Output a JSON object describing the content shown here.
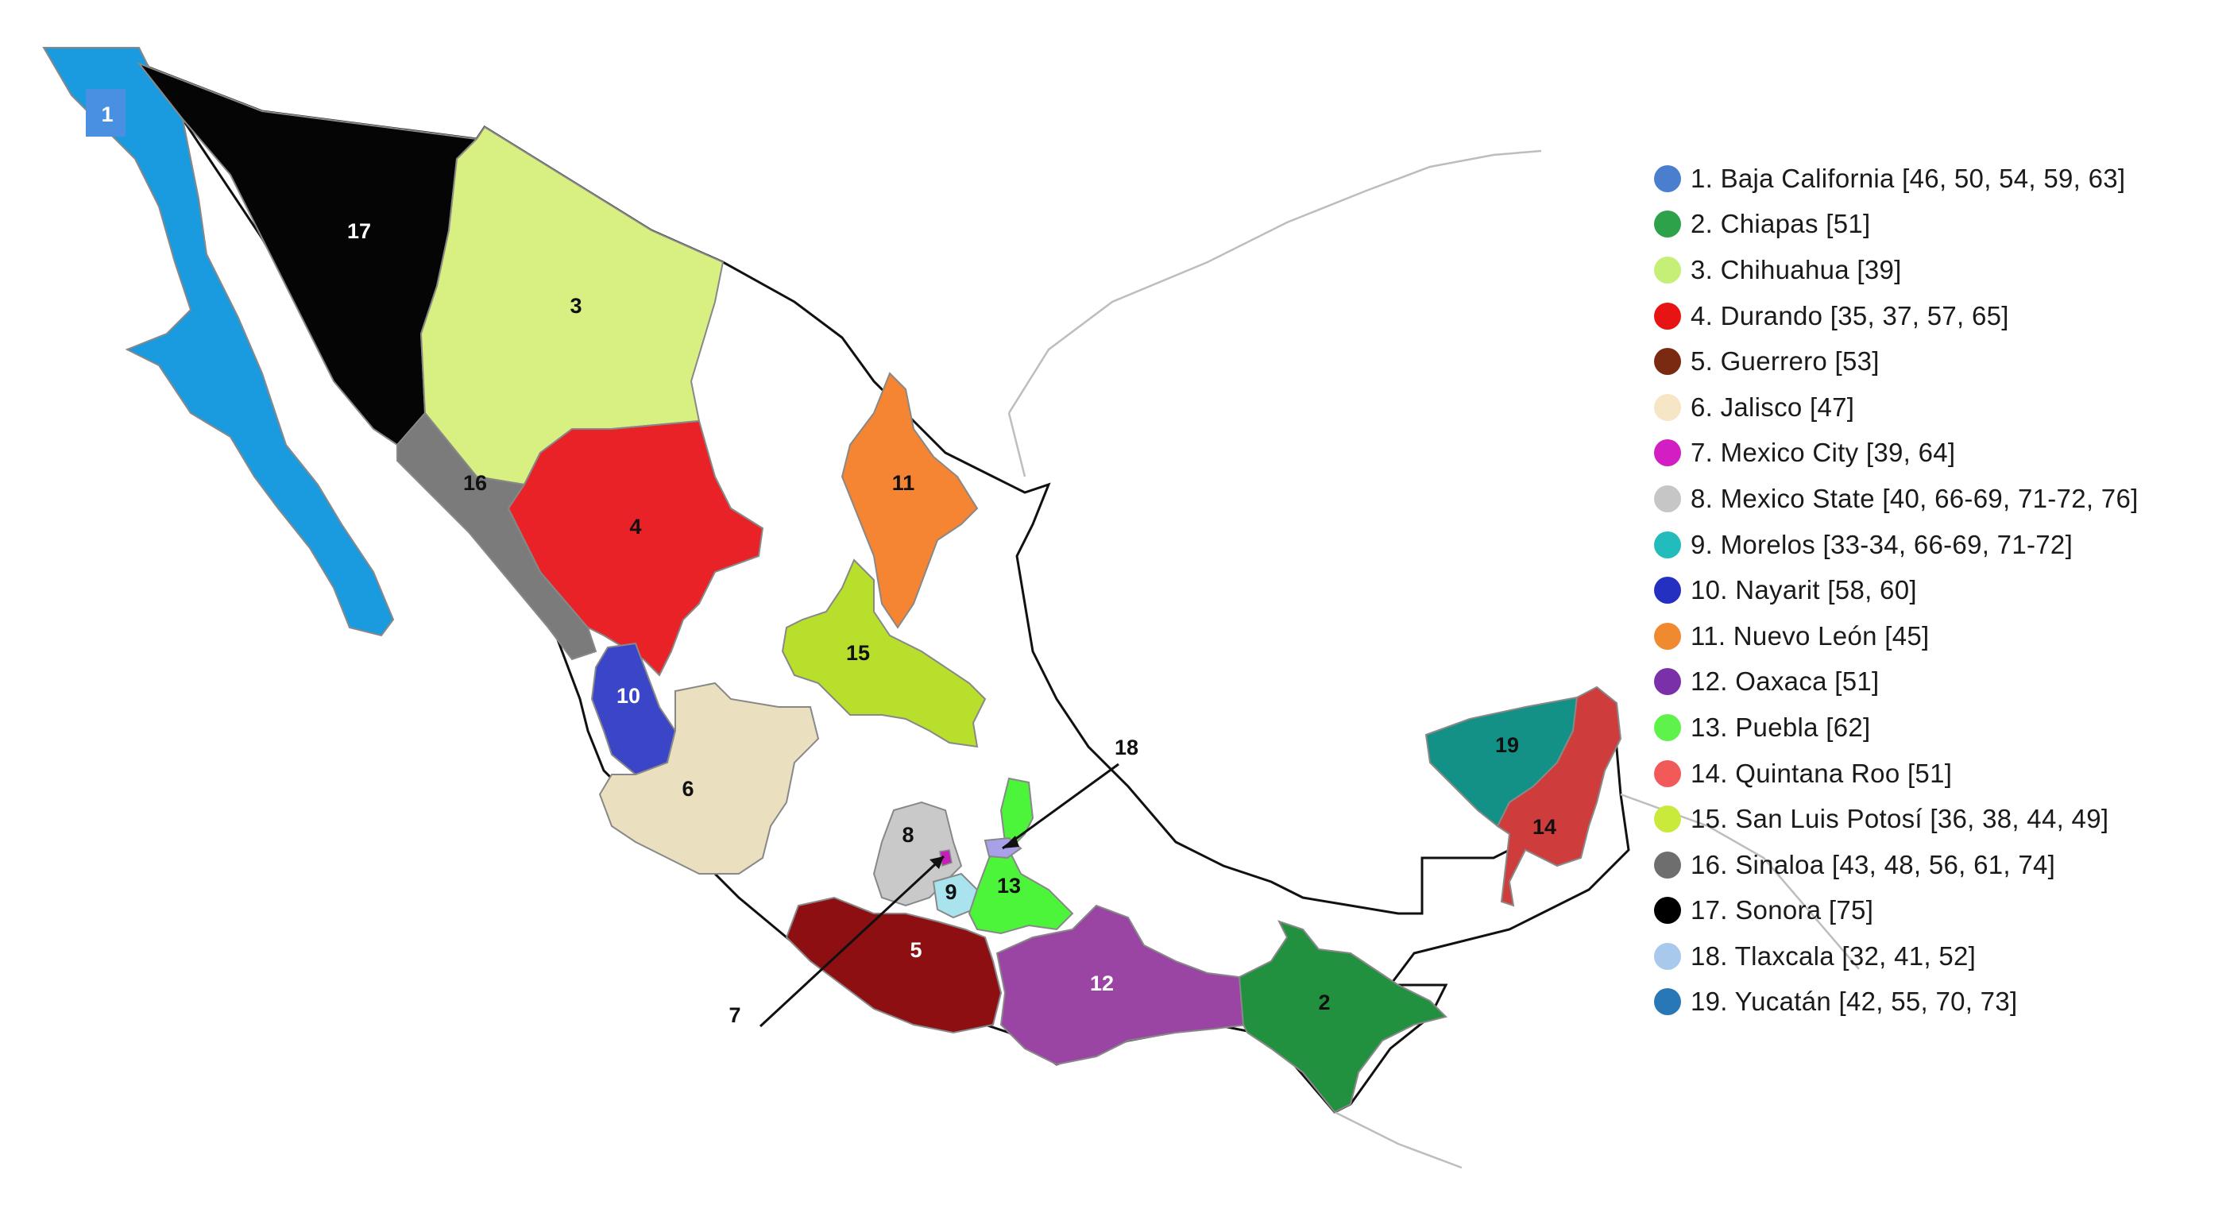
{
  "map": {
    "regions": [
      {
        "id": 1,
        "label": "1",
        "color": "#1a9be0"
      },
      {
        "id": 2,
        "label": "2",
        "color": "#21913f"
      },
      {
        "id": 3,
        "label": "3",
        "color": "#d8ef82"
      },
      {
        "id": 4,
        "label": "4",
        "color": "#e82226"
      },
      {
        "id": 5,
        "label": "5",
        "color": "#8e0f12"
      },
      {
        "id": 6,
        "label": "6",
        "color": "#eadfbf"
      },
      {
        "id": 7,
        "label": "7",
        "color": "#c41fb8"
      },
      {
        "id": 8,
        "label": "8",
        "color": "#c9c9c9"
      },
      {
        "id": 9,
        "label": "9",
        "color": "#a9e4ee"
      },
      {
        "id": 10,
        "label": "10",
        "color": "#3b45c8"
      },
      {
        "id": 11,
        "label": "11",
        "color": "#f58433"
      },
      {
        "id": 12,
        "label": "12",
        "color": "#9a44a4"
      },
      {
        "id": 13,
        "label": "13",
        "color": "#4df53a"
      },
      {
        "id": 14,
        "label": "14",
        "color": "#cf3c3c"
      },
      {
        "id": 15,
        "label": "15",
        "color": "#b7df2c"
      },
      {
        "id": 16,
        "label": "16",
        "color": "#7b7b7b"
      },
      {
        "id": 17,
        "label": "17",
        "color": "#050505"
      },
      {
        "id": 18,
        "label": "18",
        "color": "#a8a0e8"
      },
      {
        "id": 19,
        "label": "19",
        "color": "#139187"
      }
    ]
  },
  "legend": [
    {
      "text": "1. Baja California [46, 50, 54, 59, 63]",
      "color": "#4a7fd0"
    },
    {
      "text": "2. Chiapas [51]",
      "color": "#2ea24a"
    },
    {
      "text": "3. Chihuahua  [39]",
      "color": "#c6ef78"
    },
    {
      "text": "4. Durando  [35, 37, 57, 65]",
      "color": "#e81414"
    },
    {
      "text": "5. Guerrero [53]",
      "color": "#7a2a10"
    },
    {
      "text": "6. Jalisco [47]",
      "color": "#f6e6c6"
    },
    {
      "text": "7. Mexico City [39, 64]",
      "color": "#d21ec2"
    },
    {
      "text": "8. Mexico State [40, 66-69, 71-72, 76]",
      "color": "#c6c6c6"
    },
    {
      "text": "9. Morelos  [33-34, 66-69, 71-72]",
      "color": "#22bcbc"
    },
    {
      "text": "10.   Nayarit [58, 60]",
      "color": "#2330c0"
    },
    {
      "text": "11.   Nuevo León [45]",
      "color": "#f08a30"
    },
    {
      "text": "12.   Oaxaca [51]",
      "color": "#7a30a8"
    },
    {
      "text": "13.   Puebla  [62]",
      "color": "#5ef24a"
    },
    {
      "text": "14.   Quintana Roo  [51]",
      "color": "#f25a5a"
    },
    {
      "text": "15.   San Luis Potosí  [36, 38, 44, 49]",
      "color": "#c9ea3a"
    },
    {
      "text": "16.   Sinaloa  [43, 48, 56, 61, 74]",
      "color": "#6e6e6e"
    },
    {
      "text": "17.   Sonora [75]",
      "color": "#000000"
    },
    {
      "text": "18.   Tlaxcala  [32, 41, 52]",
      "color": "#a8c8ec"
    },
    {
      "text": "19.   Yucatán [42, 55, 70, 73]",
      "color": "#2878b8"
    }
  ]
}
